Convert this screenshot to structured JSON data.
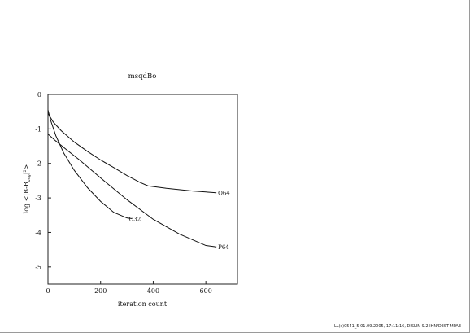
{
  "chart_data": {
    "type": "line",
    "title": "msqdBo",
    "xlabel": "iteration count",
    "ylabel": "log <|B-B_avg|²>",
    "ylabel_parts": {
      "main": "log <|B-B",
      "sub": "avg",
      "tail": "|",
      "sup": "2",
      "end": ">"
    },
    "xlim": [
      0,
      720
    ],
    "ylim": [
      -5.5,
      0
    ],
    "xticks": [
      0,
      200,
      400,
      600
    ],
    "yticks": [
      0,
      -1,
      -2,
      -3,
      -4,
      -5
    ],
    "grid": false,
    "legend": "none",
    "series": [
      {
        "name": "O64",
        "x": [
          0,
          20,
          50,
          100,
          150,
          200,
          250,
          300,
          350,
          380,
          450,
          550,
          640
        ],
        "y": [
          -0.55,
          -0.8,
          -1.05,
          -1.38,
          -1.65,
          -1.9,
          -2.12,
          -2.35,
          -2.55,
          -2.65,
          -2.72,
          -2.8,
          -2.85
        ]
      },
      {
        "name": "O32",
        "x": [
          0,
          10,
          30,
          60,
          100,
          150,
          200,
          250,
          300,
          320
        ],
        "y": [
          -0.45,
          -0.75,
          -1.2,
          -1.7,
          -2.2,
          -2.7,
          -3.1,
          -3.42,
          -3.58,
          -3.6
        ]
      },
      {
        "name": "P64",
        "x": [
          0,
          30,
          70,
          120,
          200,
          300,
          400,
          500,
          600,
          640
        ],
        "y": [
          -1.15,
          -1.35,
          -1.6,
          -1.9,
          -2.42,
          -3.05,
          -3.62,
          -4.05,
          -4.38,
          -4.42
        ]
      }
    ]
  },
  "footer": {
    "text": "LL(s)0541_5     01.09.2005, 17:11:16, DISLIN 9.2 IHN/DEST-MPAE"
  }
}
